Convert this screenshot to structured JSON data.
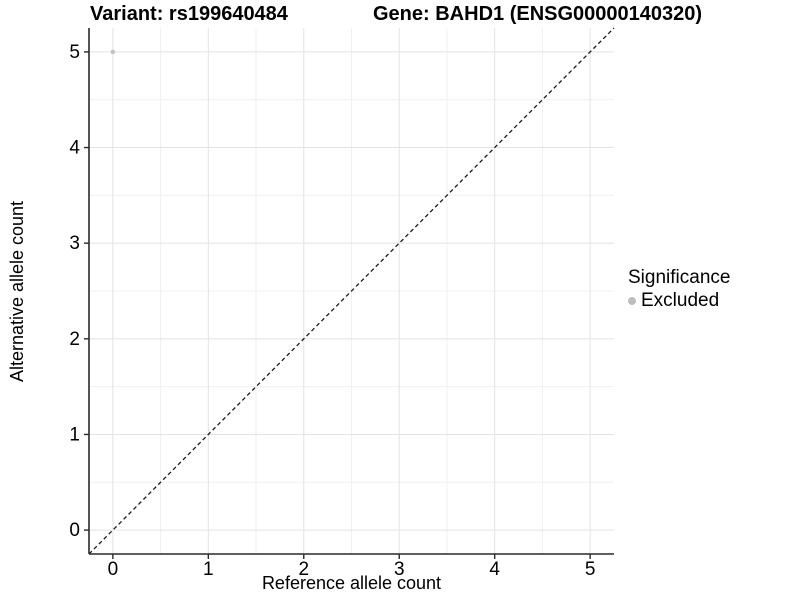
{
  "titles": {
    "variant": "Variant: rs199640484",
    "gene": "Gene: BAHD1 (ENSG00000140320)"
  },
  "chart_data": {
    "type": "scatter",
    "title_left": "Variant: rs199640484",
    "title_right": "Gene: BAHD1 (ENSG00000140320)",
    "xlabel": "Reference allele count",
    "ylabel": "Alternative allele count",
    "xlim": [
      -0.25,
      5.25
    ],
    "ylim": [
      -0.25,
      5.25
    ],
    "x_ticks": [
      0,
      1,
      2,
      3,
      4,
      5
    ],
    "y_ticks": [
      0,
      1,
      2,
      3,
      4,
      5
    ],
    "x_minor_ticks": [
      0.5,
      1.5,
      2.5,
      3.5,
      4.5
    ],
    "y_minor_ticks": [
      0.5,
      1.5,
      2.5,
      3.5,
      4.5
    ],
    "grid": true,
    "points": [
      {
        "x": 0,
        "y": 5,
        "series": "Excluded"
      }
    ],
    "reference_line": {
      "equation": "y=x",
      "style": "dashed",
      "color": "#1a1a1a"
    },
    "legend": {
      "title": "Significance",
      "position": "right",
      "entries": [
        {
          "label": "Excluded",
          "color": "#bdbdbd",
          "marker": "circle"
        }
      ]
    }
  },
  "colors": {
    "background": "#ffffff",
    "point": "#c3c3c3",
    "grid_major": "#e3e3e3",
    "grid_minor": "#f0f0f0",
    "axis": "#2a2a2a",
    "text": "#000000"
  }
}
